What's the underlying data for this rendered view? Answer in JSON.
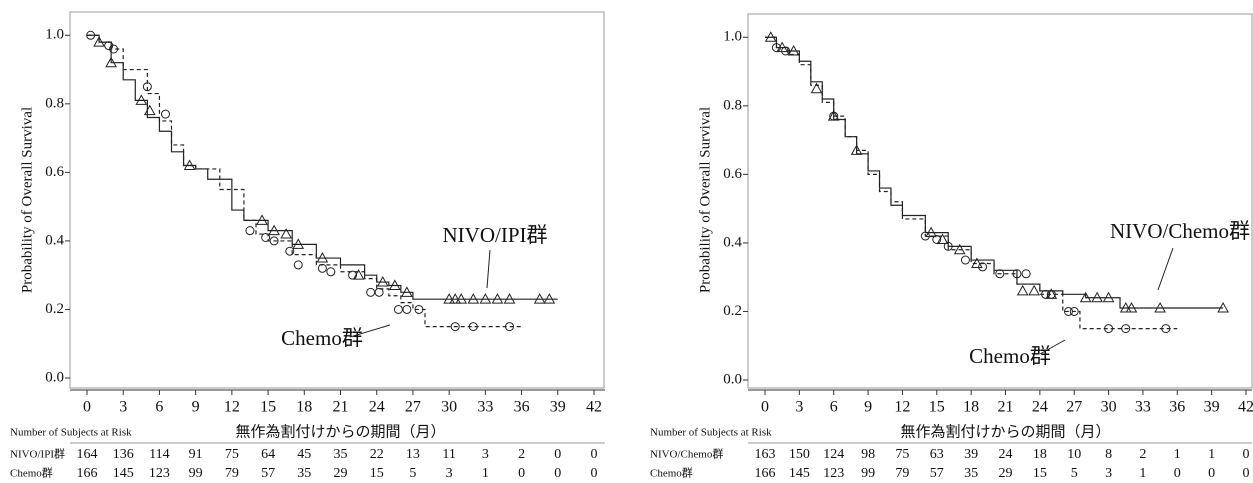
{
  "chart_data": [
    {
      "type": "line",
      "step": true,
      "y_label": "Probability of Overall Survival",
      "x_label": "無作為割付けからの期間（月）",
      "xlim": [
        0,
        42
      ],
      "xticks": [
        0,
        3,
        6,
        9,
        12,
        15,
        18,
        21,
        24,
        27,
        30,
        33,
        36,
        39,
        42
      ],
      "ylim": [
        0,
        1.03
      ],
      "yticks": [
        {
          "value": 0,
          "label": "0.0"
        },
        0.2,
        0.4,
        0.6,
        0.8,
        {
          "value": 1,
          "label": "1.0"
        }
      ],
      "series": [
        {
          "name": "NIVO/IPI群",
          "color": "#222222",
          "dash": false,
          "marker": "triangle",
          "x": [
            0,
            1,
            2,
            3,
            4,
            5,
            6,
            7,
            8,
            9,
            10,
            12,
            13,
            15,
            17,
            19,
            21,
            23,
            24,
            25,
            26,
            27,
            39
          ],
          "values": [
            1.0,
            0.98,
            0.92,
            0.87,
            0.81,
            0.76,
            0.72,
            0.66,
            0.62,
            0.61,
            0.58,
            0.49,
            0.46,
            0.43,
            0.39,
            0.35,
            0.33,
            0.3,
            0.28,
            0.27,
            0.25,
            0.23,
            0.23
          ],
          "censor_x": [
            1,
            2,
            4.5,
            5.2,
            8.5,
            14.5,
            15.5,
            16.5,
            17.5,
            19.5,
            22.5,
            24.5,
            25.5,
            26.5,
            30,
            30.5,
            31,
            32,
            33,
            34,
            35,
            37.5,
            38.3
          ],
          "censor_values": [
            0.98,
            0.92,
            0.81,
            0.78,
            0.62,
            0.46,
            0.43,
            0.42,
            0.39,
            0.35,
            0.3,
            0.28,
            0.27,
            0.25,
            0.23,
            0.23,
            0.23,
            0.23,
            0.23,
            0.23,
            0.23,
            0.23,
            0.23
          ]
        },
        {
          "name": "Chemo群",
          "color": "#222222",
          "dash": true,
          "marker": "circle",
          "x": [
            0,
            1,
            2,
            3,
            5,
            6,
            7,
            8,
            9,
            11,
            13,
            14,
            15,
            17,
            19,
            21,
            23,
            24,
            25,
            26,
            27,
            28,
            36
          ],
          "values": [
            1.0,
            0.98,
            0.96,
            0.9,
            0.83,
            0.75,
            0.68,
            0.62,
            0.61,
            0.55,
            0.46,
            0.42,
            0.4,
            0.36,
            0.33,
            0.31,
            0.29,
            0.26,
            0.24,
            0.22,
            0.2,
            0.15,
            0.15
          ],
          "censor_x": [
            0.3,
            1.8,
            2.2,
            5,
            6.5,
            13.5,
            14.8,
            15.5,
            16.8,
            17.5,
            19.5,
            20.2,
            22,
            23.5,
            24.2,
            25.8,
            26.5,
            27.5,
            30.5,
            32,
            35
          ],
          "censor_values": [
            1.0,
            0.97,
            0.96,
            0.85,
            0.77,
            0.43,
            0.41,
            0.4,
            0.37,
            0.33,
            0.32,
            0.31,
            0.3,
            0.25,
            0.25,
            0.2,
            0.2,
            0.2,
            0.15,
            0.15,
            0.15
          ]
        }
      ],
      "annotations": [
        "NIVO/IPI群",
        "Chemo群"
      ],
      "risk_table": {
        "header": "Number of Subjects at Risk",
        "rows": [
          {
            "name": "NIVO/IPI群",
            "values": [
              164,
              136,
              114,
              91,
              75,
              64,
              45,
              35,
              22,
              13,
              11,
              3,
              2,
              0,
              0
            ]
          },
          {
            "name": "Chemo群",
            "values": [
              166,
              145,
              123,
              99,
              79,
              57,
              35,
              29,
              15,
              5,
              3,
              1,
              0,
              0,
              0
            ]
          }
        ]
      }
    },
    {
      "type": "line",
      "step": true,
      "y_label": "Probability of Overall Survival",
      "x_label": "無作為割付けからの期間（月）",
      "xlim": [
        0,
        42
      ],
      "xticks": [
        0,
        3,
        6,
        9,
        12,
        15,
        18,
        21,
        24,
        27,
        30,
        33,
        36,
        39,
        42
      ],
      "ylim": [
        0,
        1.03
      ],
      "yticks": [
        {
          "value": 0,
          "label": "0.0"
        },
        0.2,
        0.4,
        0.6,
        0.8,
        {
          "value": 1,
          "label": "1.0"
        }
      ],
      "series": [
        {
          "name": "NIVO/Chemo群",
          "color": "#222222",
          "dash": false,
          "marker": "triangle",
          "x": [
            0,
            1,
            2,
            3,
            4,
            5,
            6,
            7,
            8,
            9,
            10,
            11,
            12,
            14,
            16,
            18,
            20,
            22,
            24,
            26,
            28,
            31,
            40
          ],
          "values": [
            1.0,
            0.97,
            0.96,
            0.93,
            0.87,
            0.82,
            0.76,
            0.71,
            0.66,
            0.61,
            0.56,
            0.51,
            0.48,
            0.43,
            0.39,
            0.35,
            0.32,
            0.28,
            0.26,
            0.25,
            0.24,
            0.21,
            0.21
          ],
          "censor_x": [
            0.5,
            1.5,
            2.5,
            4.5,
            6,
            8,
            14.5,
            15.5,
            17,
            18.5,
            22.5,
            23.5,
            25,
            28,
            29,
            30,
            31.5,
            32,
            34.5,
            40
          ],
          "censor_values": [
            1.0,
            0.97,
            0.96,
            0.85,
            0.77,
            0.67,
            0.43,
            0.41,
            0.38,
            0.34,
            0.26,
            0.26,
            0.25,
            0.24,
            0.24,
            0.24,
            0.21,
            0.21,
            0.21,
            0.21
          ]
        },
        {
          "name": "Chemo群",
          "color": "#222222",
          "dash": true,
          "marker": "circle",
          "x": [
            0,
            1,
            2,
            3,
            4,
            5,
            6,
            7,
            8,
            9,
            10,
            11,
            12,
            14,
            16,
            18,
            20,
            22,
            24,
            26,
            27.5,
            36
          ],
          "values": [
            1.0,
            0.97,
            0.95,
            0.92,
            0.86,
            0.81,
            0.77,
            0.71,
            0.67,
            0.6,
            0.55,
            0.52,
            0.47,
            0.42,
            0.38,
            0.34,
            0.31,
            0.28,
            0.25,
            0.2,
            0.15,
            0.15
          ],
          "censor_x": [
            1,
            1.8,
            6,
            14,
            15,
            16,
            17.5,
            19,
            20.5,
            22,
            22.8,
            24.5,
            25,
            26.5,
            27,
            30,
            31.5,
            35
          ],
          "censor_values": [
            0.97,
            0.96,
            0.77,
            0.42,
            0.41,
            0.39,
            0.35,
            0.33,
            0.31,
            0.31,
            0.31,
            0.25,
            0.25,
            0.2,
            0.2,
            0.15,
            0.15,
            0.15
          ]
        }
      ],
      "annotations": [
        "NIVO/Chemo群",
        "Chemo群"
      ],
      "risk_table": {
        "header": "Number of Subjects at Risk",
        "rows": [
          {
            "name": "NIVO/Chemo群",
            "values": [
              163,
              150,
              124,
              98,
              75,
              63,
              39,
              24,
              18,
              10,
              8,
              2,
              1,
              1,
              0
            ]
          },
          {
            "name": "Chemo群",
            "values": [
              166,
              145,
              123,
              99,
              79,
              57,
              35,
              29,
              15,
              5,
              3,
              1,
              0,
              0,
              0
            ]
          }
        ]
      }
    }
  ]
}
